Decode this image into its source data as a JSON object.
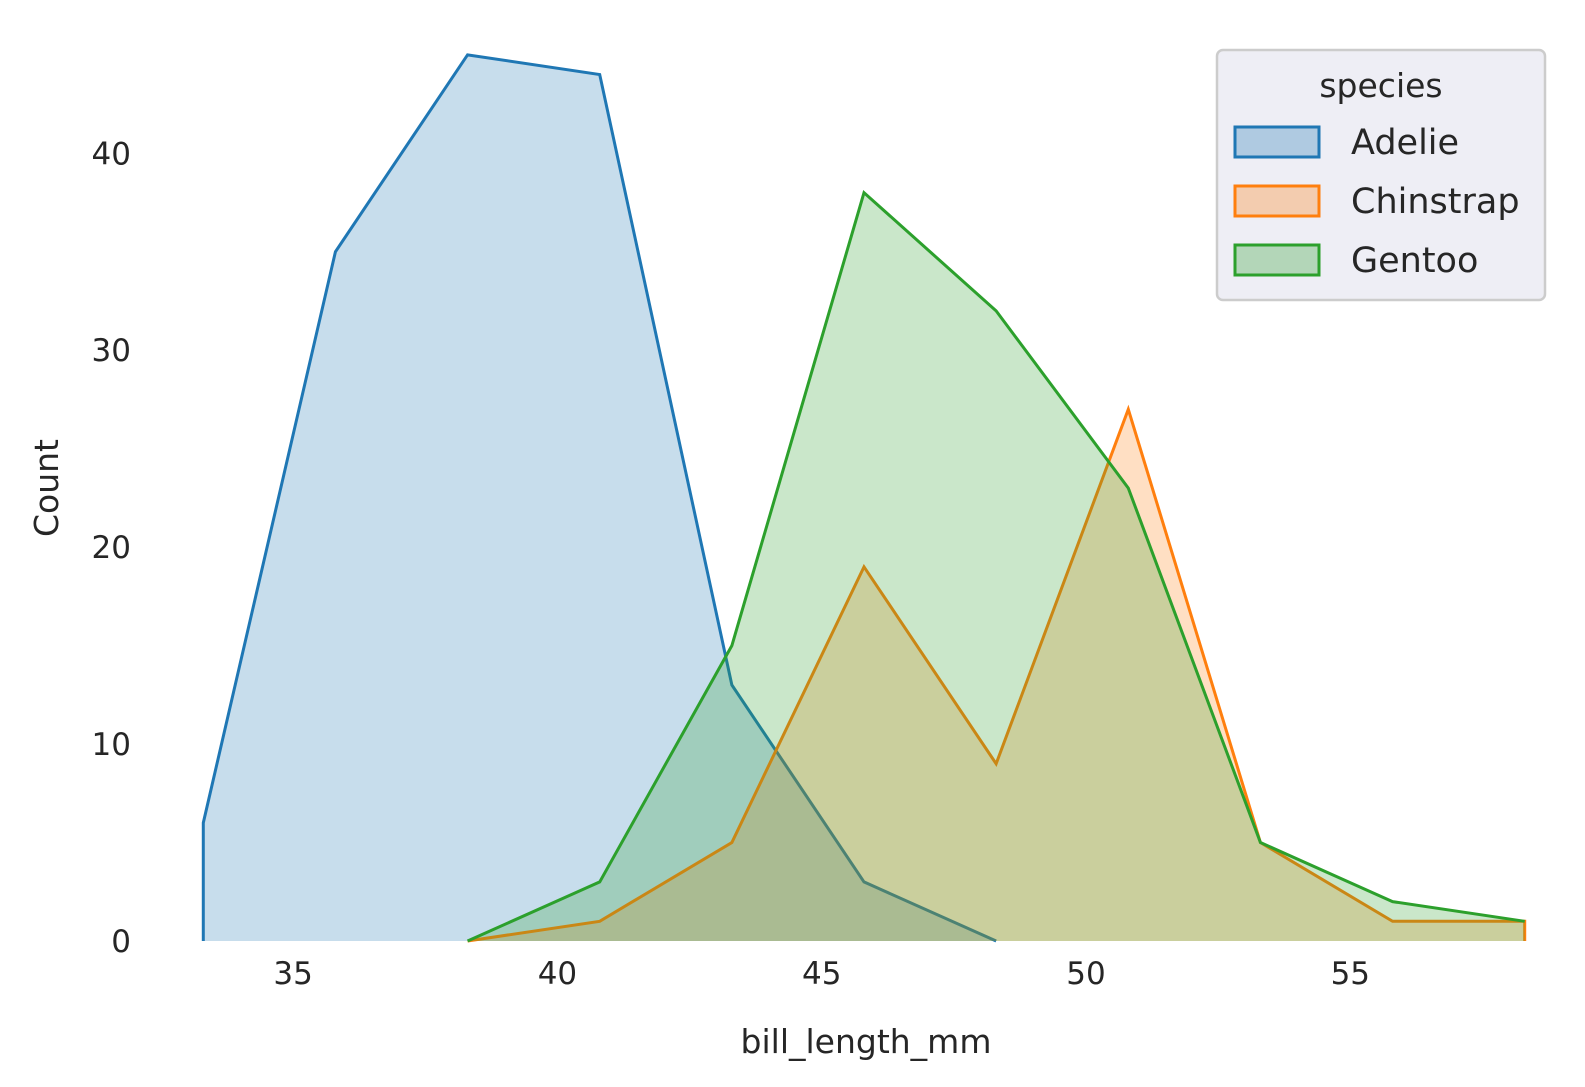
{
  "chart_data": {
    "type": "area",
    "xlabel": "bill_length_mm",
    "ylabel": "Count",
    "xlim": [
      33.2,
      58.4
    ],
    "ylim": [
      0,
      45.5
    ],
    "xticks": [
      35,
      40,
      45,
      50,
      55
    ],
    "yticks": [
      0,
      10,
      20,
      30,
      40
    ],
    "grid": false,
    "legend": {
      "title": "species",
      "placement": "top-right",
      "entries": [
        "Adelie",
        "Chinstrap",
        "Gentoo"
      ]
    },
    "series": [
      {
        "name": "Adelie",
        "color": "#1f77b4",
        "x": [
          33.3,
          33.3,
          35.8,
          38.3,
          40.8,
          43.3,
          45.8,
          48.3
        ],
        "y": [
          0,
          6,
          35,
          45,
          44,
          13,
          3,
          0
        ]
      },
      {
        "name": "Chinstrap",
        "color": "#ff7f0e",
        "x": [
          38.3,
          40.8,
          43.3,
          45.8,
          48.3,
          50.8,
          53.3,
          55.8,
          58.3,
          58.3
        ],
        "y": [
          0,
          1,
          5,
          19,
          9,
          27,
          5,
          1,
          1,
          0
        ]
      },
      {
        "name": "Gentoo",
        "color": "#2ca02c",
        "x": [
          38.3,
          40.8,
          43.3,
          45.8,
          48.3,
          50.8,
          53.3,
          55.8,
          58.3
        ],
        "y": [
          0,
          3,
          15,
          38,
          32,
          23,
          5,
          2,
          1
        ]
      }
    ]
  }
}
